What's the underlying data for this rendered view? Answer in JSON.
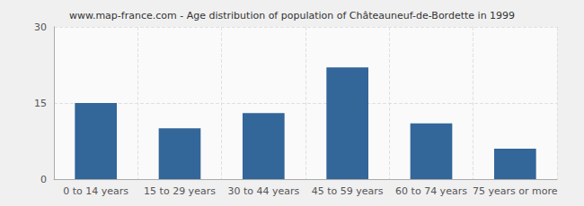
{
  "chart_data": {
    "type": "bar",
    "title": "www.map-france.com - Age distribution of population of Châteauneuf-de-Bordette in 1999",
    "categories": [
      "0 to 14 years",
      "15 to 29 years",
      "30 to 44 years",
      "45 to 59 years",
      "60 to 74 years",
      "75 years or more"
    ],
    "values": [
      15,
      10,
      13,
      22,
      11,
      6
    ],
    "color": "#336699",
    "ylim": [
      0,
      30
    ],
    "yticks": [
      0,
      15,
      30
    ],
    "grid": true
  }
}
